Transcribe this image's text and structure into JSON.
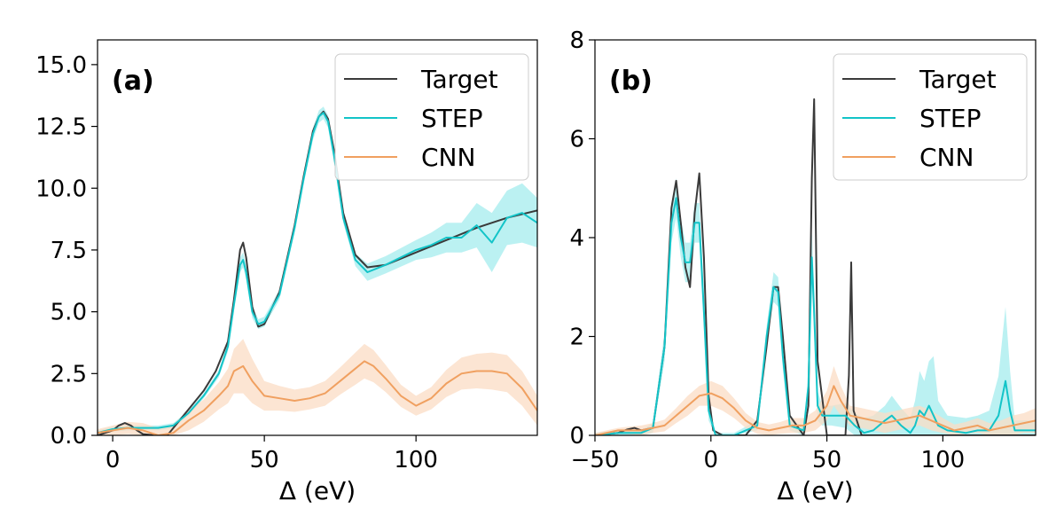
{
  "chart_data": [
    {
      "type": "line",
      "panel_label": "(a)",
      "xlabel": "Δ (eV)",
      "ylabel": "",
      "xlim": [
        -5,
        140
      ],
      "ylim": [
        0,
        16
      ],
      "xticks": [
        0,
        50,
        100
      ],
      "xtick_labels": [
        "0",
        "50",
        "100"
      ],
      "yticks": [
        0,
        2.5,
        5,
        7.5,
        10,
        12.5,
        15
      ],
      "ytick_labels": [
        "0.0",
        "2.5",
        "5.0",
        "7.5",
        "10.0",
        "12.5",
        "15.0"
      ],
      "grid": false,
      "legend_position": "top-right",
      "series": [
        {
          "name": "Target",
          "color": "#3a3a3a",
          "band": false,
          "x": [
            -5,
            0,
            2,
            4,
            6,
            8,
            10,
            14,
            18,
            22,
            26,
            30,
            34,
            38,
            40,
            42,
            43,
            44,
            46,
            48,
            50,
            55,
            60,
            63,
            66,
            68,
            69.5,
            71,
            73,
            76,
            80,
            84,
            90,
            100,
            110,
            120,
            130,
            140
          ],
          "y": [
            0.0,
            0.2,
            0.4,
            0.5,
            0.4,
            0.2,
            0.05,
            0.0,
            0.0,
            0.6,
            1.2,
            1.8,
            2.6,
            3.8,
            5.5,
            7.5,
            7.8,
            7.2,
            5.2,
            4.4,
            4.5,
            5.8,
            8.5,
            10.5,
            12.3,
            12.9,
            13.1,
            12.8,
            11.5,
            9.0,
            7.3,
            6.8,
            6.9,
            7.4,
            7.9,
            8.4,
            8.8,
            9.1
          ]
        },
        {
          "name": "STEP",
          "color": "#13c4c8",
          "band": true,
          "band_color": "#a4ecee",
          "x": [
            -5,
            0,
            5,
            10,
            15,
            20,
            25,
            30,
            35,
            38,
            40,
            42,
            43,
            44,
            46,
            48,
            50,
            55,
            60,
            63,
            66,
            68,
            69.5,
            71,
            73,
            76,
            80,
            84,
            90,
            100,
            105,
            110,
            115,
            120,
            125,
            130,
            135,
            140
          ],
          "y": [
            0.1,
            0.25,
            0.3,
            0.3,
            0.3,
            0.4,
            0.9,
            1.6,
            2.5,
            3.6,
            5.3,
            6.9,
            7.1,
            6.6,
            5.0,
            4.5,
            4.6,
            5.7,
            8.4,
            10.4,
            12.2,
            12.9,
            13.05,
            12.7,
            11.3,
            8.8,
            7.1,
            6.6,
            6.9,
            7.5,
            7.7,
            8.0,
            8.0,
            8.5,
            7.8,
            8.8,
            9.0,
            8.6
          ],
          "band_halfwidth": [
            0.1,
            0.1,
            0.1,
            0.1,
            0.1,
            0.1,
            0.1,
            0.1,
            0.15,
            0.2,
            0.25,
            0.3,
            0.3,
            0.3,
            0.25,
            0.2,
            0.2,
            0.2,
            0.2,
            0.2,
            0.25,
            0.25,
            0.25,
            0.25,
            0.25,
            0.2,
            0.25,
            0.35,
            0.35,
            0.4,
            0.5,
            0.6,
            0.6,
            0.9,
            1.2,
            1.1,
            1.2,
            1.0
          ]
        },
        {
          "name": "CNN",
          "color": "#f0a060",
          "band": true,
          "band_color": "#fbdcc4",
          "x": [
            -5,
            0,
            5,
            10,
            15,
            20,
            25,
            30,
            35,
            38,
            40,
            43,
            46,
            50,
            55,
            60,
            65,
            70,
            75,
            80,
            83,
            86,
            90,
            95,
            100,
            105,
            110,
            115,
            120,
            125,
            130,
            135,
            140
          ],
          "y": [
            0.1,
            0.2,
            0.3,
            0.2,
            0.0,
            0.1,
            0.6,
            1.0,
            1.6,
            2.0,
            2.6,
            2.8,
            2.2,
            1.6,
            1.5,
            1.4,
            1.5,
            1.7,
            2.2,
            2.7,
            3.0,
            2.8,
            2.3,
            1.6,
            1.2,
            1.5,
            2.1,
            2.5,
            2.6,
            2.6,
            2.5,
            1.9,
            1.0
          ],
          "band_halfwidth": [
            0.15,
            0.2,
            0.25,
            0.3,
            0.3,
            0.35,
            0.4,
            0.45,
            0.55,
            0.7,
            0.9,
            1.1,
            0.9,
            0.6,
            0.5,
            0.45,
            0.45,
            0.5,
            0.55,
            0.65,
            0.7,
            0.65,
            0.55,
            0.45,
            0.4,
            0.45,
            0.55,
            0.65,
            0.7,
            0.75,
            0.75,
            0.7,
            0.6
          ]
        }
      ]
    },
    {
      "type": "line",
      "panel_label": "(b)",
      "xlabel": "Δ (eV)",
      "ylabel": "",
      "xlim": [
        -50,
        140
      ],
      "ylim": [
        0,
        8
      ],
      "xticks": [
        -50,
        0,
        50,
        100
      ],
      "xtick_labels": [
        "−50",
        "0",
        "50",
        "100"
      ],
      "yticks": [
        0,
        2,
        4,
        6,
        8
      ],
      "ytick_labels": [
        "0",
        "2",
        "4",
        "6",
        "8"
      ],
      "grid": false,
      "legend_position": "top-right",
      "series": [
        {
          "name": "Target",
          "color": "#3a3a3a",
          "band": false,
          "x": [
            -50,
            -40,
            -36,
            -33,
            -30,
            -25,
            -20,
            -17,
            -15,
            -13,
            -11,
            -9,
            -7,
            -5,
            -3,
            -1,
            1,
            5,
            15,
            20,
            24,
            27,
            29,
            31,
            34,
            40,
            42,
            43.5,
            44.5,
            46,
            50,
            58,
            59.5,
            60.5,
            61.5,
            65,
            140
          ],
          "y": [
            0.0,
            0.05,
            0.12,
            0.15,
            0.1,
            0.15,
            1.8,
            4.6,
            5.15,
            4.3,
            3.4,
            3.0,
            4.5,
            5.3,
            3.6,
            0.8,
            0.1,
            0.0,
            0.0,
            0.3,
            1.8,
            3.0,
            3.0,
            2.0,
            0.4,
            0.0,
            0.6,
            5.2,
            6.8,
            1.5,
            0.0,
            0.0,
            1.2,
            3.5,
            0.5,
            0.0,
            0.0
          ]
        },
        {
          "name": "STEP",
          "color": "#13c4c8",
          "band": true,
          "band_color": "#a4ecee",
          "x": [
            -50,
            -40,
            -35,
            -30,
            -25,
            -20,
            -17,
            -15,
            -13,
            -11,
            -9,
            -7,
            -5,
            -3,
            -1,
            2,
            10,
            20,
            24,
            27,
            29,
            31,
            34,
            40,
            42,
            43.5,
            44.5,
            46,
            48,
            52,
            58,
            62,
            66,
            70,
            75,
            78,
            82,
            86,
            88,
            90,
            92,
            94,
            96,
            98,
            102,
            110,
            115,
            120,
            124,
            127,
            129,
            131,
            135,
            140
          ],
          "y": [
            0.0,
            0.05,
            0.05,
            0.05,
            0.15,
            1.8,
            4.3,
            4.8,
            4.0,
            3.5,
            3.5,
            4.3,
            4.3,
            2.5,
            0.5,
            0.0,
            0.0,
            0.2,
            2.0,
            3.0,
            2.9,
            1.6,
            0.2,
            0.1,
            1.0,
            3.6,
            2.5,
            0.6,
            0.4,
            0.4,
            0.4,
            0.2,
            0.05,
            0.1,
            0.3,
            0.4,
            0.2,
            0.05,
            0.2,
            0.5,
            0.4,
            0.6,
            0.4,
            0.2,
            0.1,
            0.05,
            0.1,
            0.1,
            0.4,
            1.1,
            0.5,
            0.1,
            0.1,
            0.1
          ],
          "band_halfwidth": [
            0.05,
            0.05,
            0.05,
            0.05,
            0.1,
            0.3,
            0.4,
            0.4,
            0.4,
            0.4,
            0.4,
            0.4,
            0.4,
            0.35,
            0.2,
            0.05,
            0.05,
            0.1,
            0.2,
            0.3,
            0.3,
            0.25,
            0.1,
            0.1,
            0.2,
            0.5,
            0.5,
            0.3,
            0.2,
            0.2,
            0.25,
            0.25,
            0.3,
            0.3,
            0.3,
            0.4,
            0.35,
            0.3,
            0.5,
            0.8,
            0.7,
            0.9,
            1.2,
            0.5,
            0.3,
            0.3,
            0.3,
            0.4,
            0.8,
            1.5,
            0.8,
            0.2,
            0.2,
            0.2
          ]
        },
        {
          "name": "CNN",
          "color": "#f0a060",
          "band": true,
          "band_color": "#fbdcc4",
          "x": [
            -50,
            -45,
            -40,
            -35,
            -30,
            -25,
            -20,
            -15,
            -10,
            -5,
            0,
            5,
            10,
            15,
            20,
            25,
            30,
            35,
            40,
            45,
            50,
            53,
            56,
            60,
            65,
            70,
            75,
            80,
            85,
            90,
            95,
            100,
            105,
            110,
            115,
            120,
            125,
            130,
            135,
            140
          ],
          "y": [
            0.0,
            0.05,
            0.1,
            0.1,
            0.1,
            0.15,
            0.2,
            0.4,
            0.6,
            0.8,
            0.85,
            0.75,
            0.55,
            0.3,
            0.15,
            0.1,
            0.15,
            0.2,
            0.2,
            0.3,
            0.6,
            1.0,
            0.7,
            0.4,
            0.35,
            0.3,
            0.25,
            0.3,
            0.35,
            0.4,
            0.3,
            0.2,
            0.1,
            0.15,
            0.2,
            0.1,
            0.15,
            0.2,
            0.25,
            0.3
          ],
          "band_halfwidth": [
            0.05,
            0.05,
            0.05,
            0.08,
            0.1,
            0.1,
            0.12,
            0.15,
            0.2,
            0.2,
            0.25,
            0.25,
            0.2,
            0.15,
            0.12,
            0.12,
            0.12,
            0.15,
            0.15,
            0.2,
            0.3,
            0.4,
            0.3,
            0.2,
            0.2,
            0.2,
            0.2,
            0.2,
            0.2,
            0.2,
            0.2,
            0.15,
            0.12,
            0.12,
            0.15,
            0.15,
            0.15,
            0.2,
            0.2,
            0.25
          ]
        }
      ]
    }
  ]
}
